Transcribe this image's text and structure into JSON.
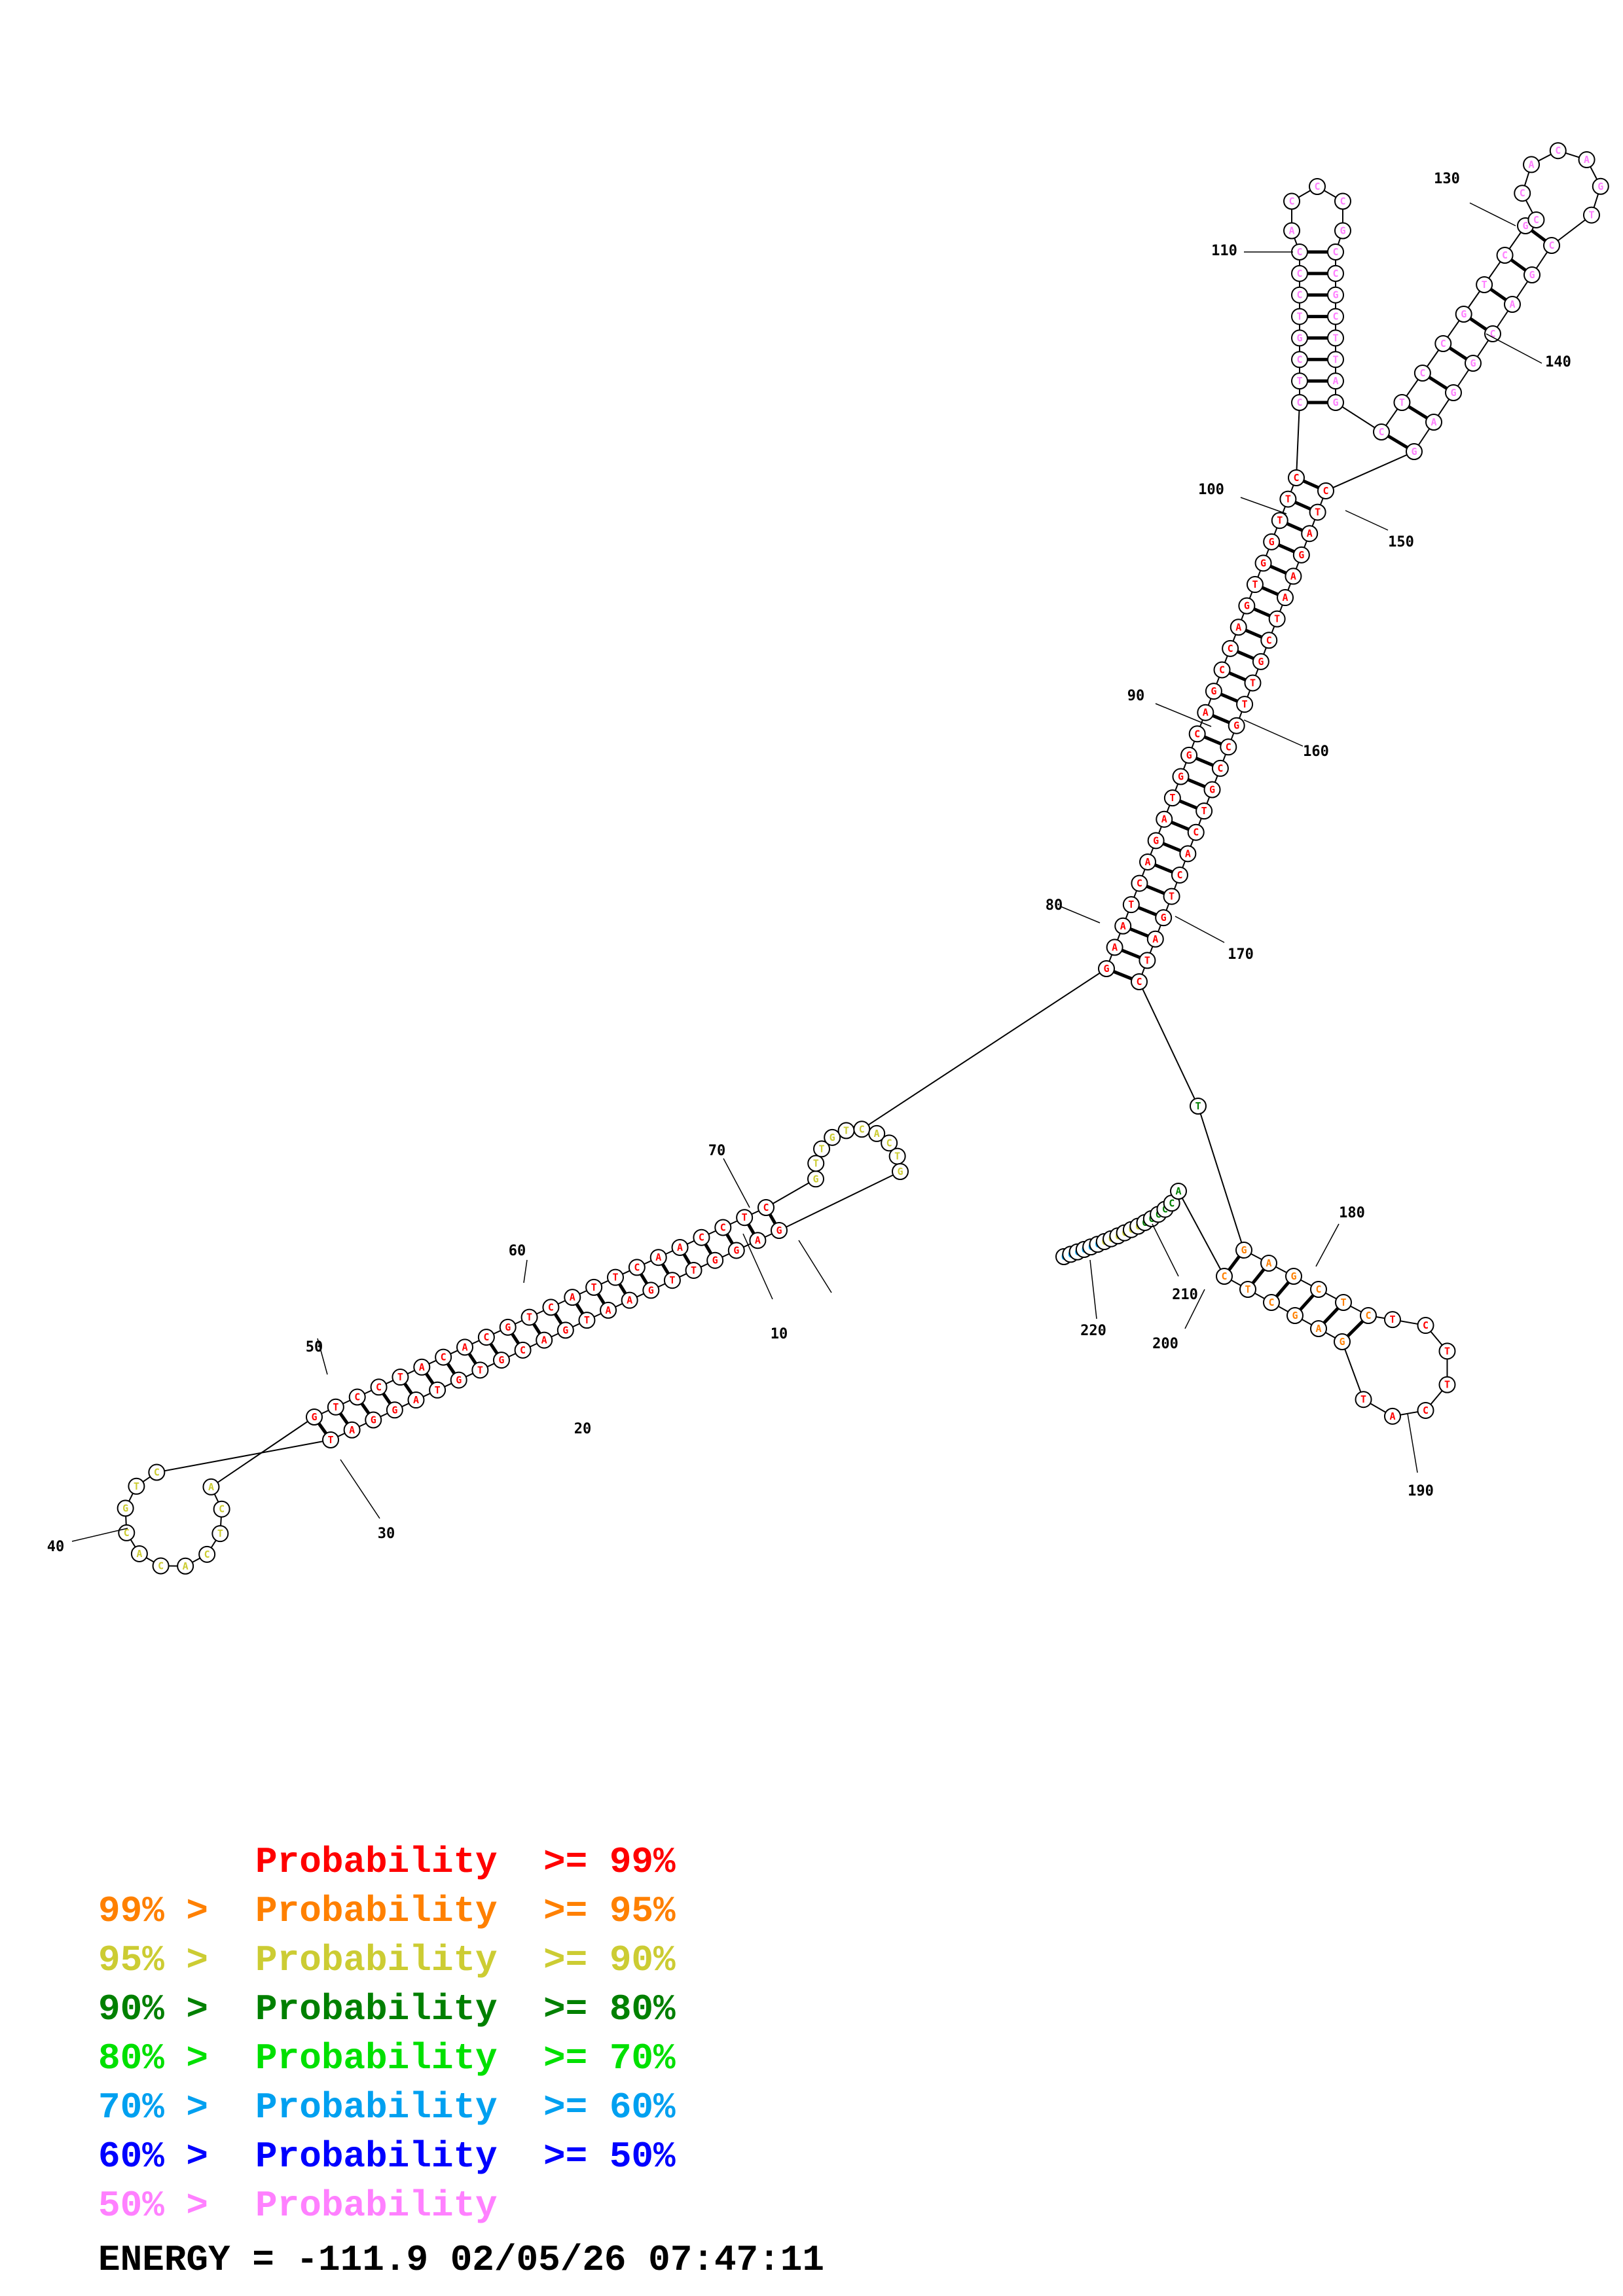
{
  "colors": {
    "p99": "#ff0000",
    "p95": "#ff8000",
    "p90": "#cccc33",
    "p80": "#008000",
    "p70": "#00e000",
    "p60": "#00a0f0",
    "p50": "#0000ff",
    "plow": "#ff80ff"
  },
  "legend": [
    {
      "prefix": "",
      "label": "Probability",
      "suffix": ">= 99%",
      "color_key": "p99"
    },
    {
      "prefix": "99% >",
      "label": "Probability",
      "suffix": ">= 95%",
      "color_key": "p95"
    },
    {
      "prefix": "95% >",
      "label": "Probability",
      "suffix": ">= 90%",
      "color_key": "p90"
    },
    {
      "prefix": "90% >",
      "label": "Probability",
      "suffix": ">= 80%",
      "color_key": "p80"
    },
    {
      "prefix": "80% >",
      "label": "Probability",
      "suffix": ">= 70%",
      "color_key": "p70"
    },
    {
      "prefix": "70% >",
      "label": "Probability",
      "suffix": ">= 60%",
      "color_key": "p60"
    },
    {
      "prefix": "60% >",
      "label": "Probability",
      "suffix": ">= 50%",
      "color_key": "p50"
    },
    {
      "prefix": "50% >",
      "label": "Probability",
      "suffix": "",
      "color_key": "plow"
    }
  ],
  "energy": "ENERGY = -111.9  02/05/26 07:47:11",
  "position_labels": [
    "10",
    "20",
    "30",
    "40",
    "50",
    "60",
    "70",
    "80",
    "90",
    "100",
    "110",
    "130",
    "140",
    "150",
    "160",
    "170",
    "180",
    "190",
    "200",
    "210",
    "220"
  ],
  "helices": [
    {
      "name": "stem-5prime-left",
      "strand_a": "CTCCAACTTACTGCACATCCTG",
      "strand_b": "GAGGTTGAATGACGTGTAGGAT",
      "color_key": "p99"
    },
    {
      "name": "stem-central",
      "strand_a": "GAATCAGATGGCAGCCAGTGGTTC",
      "strand_b": "CTAGTCACTGCCGTTGCTAAGATC",
      "color_key": "p99"
    },
    {
      "name": "hairpin-110",
      "strand_a": "CTCGTCCC",
      "strand_b": "GATTCGCC",
      "color_key": "plow"
    },
    {
      "name": "hairpin-130",
      "strand_a": "CTCCGTCG",
      "strand_b": "GAGGCAGC",
      "color_key": "plow"
    },
    {
      "name": "hairpin-190",
      "strand_a": "CTCGAG",
      "strand_b": "GAGCTC",
      "color_key": "p95"
    }
  ],
  "loops": [
    {
      "name": "loop-40",
      "seq": "ACTCACACGTC",
      "color_key": "p90"
    },
    {
      "name": "loop-70",
      "seq": "GTTGTCACTG",
      "color_key": "p90"
    },
    {
      "name": "loop-110",
      "seq": "ACCCG",
      "color_key": "plow"
    },
    {
      "name": "loop-130",
      "seq": "CCACAGT",
      "color_key": "plow"
    },
    {
      "name": "loop-190",
      "seq": "TCTTCAT",
      "color_key": "p99"
    },
    {
      "name": "tail-220",
      "seq": "ACCCCCCCCCCCCCCCCC",
      "color_key": "p60"
    }
  ]
}
